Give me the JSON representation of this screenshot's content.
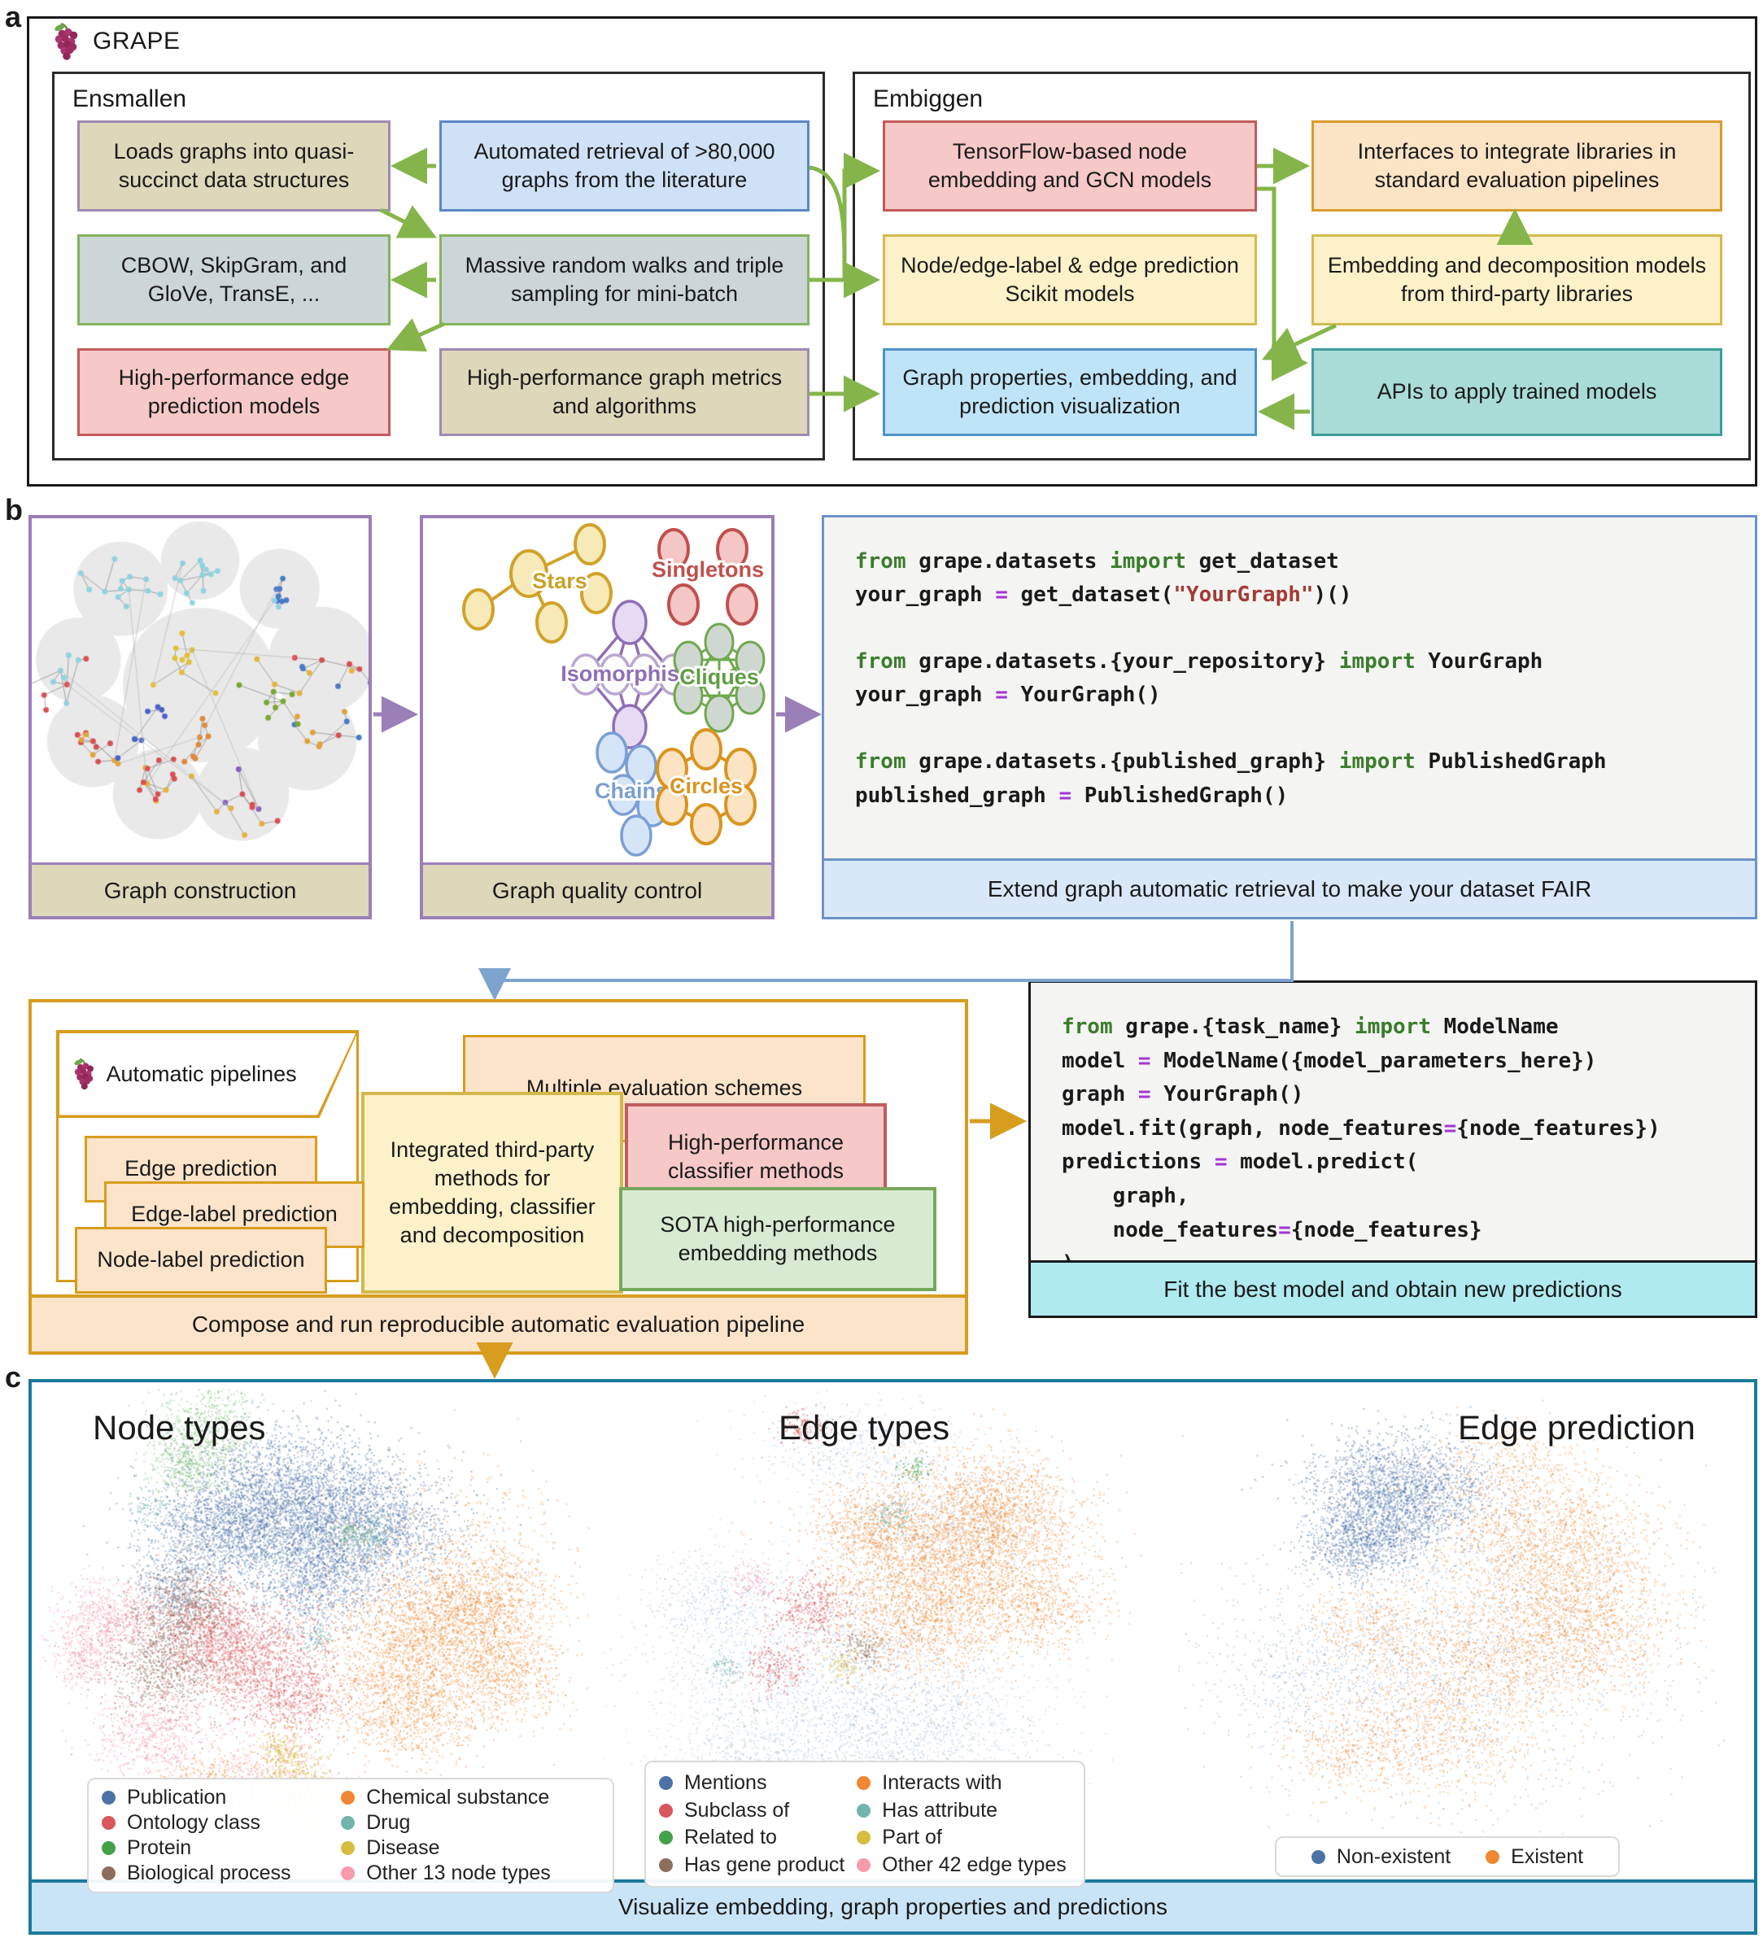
{
  "panel_labels": {
    "a": "a",
    "b": "b",
    "c": "c"
  },
  "brand": {
    "name": "GRAPE",
    "grape_color": "#9c2d62",
    "stem_color": "#5c8a3a"
  },
  "panel_a": {
    "ensmallen": {
      "title": "Ensmallen",
      "boxes": {
        "loads": "Loads graphs into quasi-succinct data structures",
        "retrieval": "Automated retrieval of >80,000 graphs from the literature",
        "cbow": "CBOW, SkipGram, and GloVe, TransE, ...",
        "walks": "Massive random walks and triple sampling for mini-batch",
        "edgepred": "High-performance edge prediction models",
        "metrics": "High-performance graph metrics and algorithms"
      }
    },
    "embiggen": {
      "title": "Embiggen",
      "boxes": {
        "tf": "TensorFlow-based node embedding and GCN models",
        "interfaces": "Interfaces to integrate libraries in standard evaluation pipelines",
        "scikit": "Node/edge-label & edge prediction Scikit models",
        "third": "Embedding and decomposition models from third-party libraries",
        "viz": "Graph properties, embedding, and prediction visualization",
        "apis": "APIs to apply trained models"
      }
    },
    "arrow_color": "#85b54a"
  },
  "panel_b": {
    "construction": {
      "caption": "Graph construction"
    },
    "quality": {
      "caption": "Graph quality control",
      "motifs": [
        "Stars",
        "Singletons",
        "Isomorphism",
        "Cliques",
        "Chains",
        "Circles"
      ]
    },
    "code1": {
      "caption": "Extend graph automatic retrieval to make your dataset FAIR",
      "lines": [
        [
          [
            "k",
            "from"
          ],
          [
            "p",
            " grape.datasets "
          ],
          [
            "k",
            "import"
          ],
          [
            "p",
            " get_dataset"
          ]
        ],
        [
          [
            "p",
            "your_graph "
          ],
          [
            "o",
            "="
          ],
          [
            "p",
            " get_dataset("
          ],
          [
            "s",
            "\"YourGraph\""
          ],
          [
            "p",
            ")()"
          ]
        ],
        [],
        [
          [
            "k",
            "from"
          ],
          [
            "p",
            " grape.datasets.{your_repository} "
          ],
          [
            "k",
            "import"
          ],
          [
            "p",
            " YourGraph"
          ]
        ],
        [
          [
            "p",
            "your_graph "
          ],
          [
            "o",
            "="
          ],
          [
            "p",
            " YourGraph()"
          ]
        ],
        [],
        [
          [
            "k",
            "from"
          ],
          [
            "p",
            " grape.datasets.{published_graph} "
          ],
          [
            "k",
            "import"
          ],
          [
            "p",
            " PublishedGraph"
          ]
        ],
        [
          [
            "p",
            "published_graph "
          ],
          [
            "o",
            "="
          ],
          [
            "p",
            " PublishedGraph()"
          ]
        ]
      ]
    },
    "pipelines": {
      "tab": "Automatic pipelines",
      "items": [
        "Edge prediction",
        "Edge-label prediction",
        "Node-label prediction"
      ],
      "schemes": "Multiple evaluation schemes",
      "third_party": "Integrated third-party methods for embedding, classifier and decomposition",
      "classifier": "High-performance classifier methods",
      "sota": "SOTA high-performance embedding methods",
      "caption": "Compose and run reproducible automatic evaluation pipeline"
    },
    "code2": {
      "caption": "Fit the best model and obtain new predictions",
      "lines": [
        [
          [
            "k",
            "from"
          ],
          [
            "p",
            " grape.{task_name} "
          ],
          [
            "k",
            "import"
          ],
          [
            "p",
            " ModelName"
          ]
        ],
        [
          [
            "p",
            "model "
          ],
          [
            "o",
            "="
          ],
          [
            "p",
            " ModelName({model_parameters_here})"
          ]
        ],
        [
          [
            "p",
            "graph "
          ],
          [
            "o",
            "="
          ],
          [
            "p",
            " YourGraph()"
          ]
        ],
        [
          [
            "p",
            "model.fit(graph, node_features"
          ],
          [
            "o",
            "="
          ],
          [
            "p",
            "{node_features})"
          ]
        ],
        [
          [
            "p",
            "predictions "
          ],
          [
            "o",
            "="
          ],
          [
            "p",
            " model.predict("
          ]
        ],
        [
          [
            "p",
            "    graph,"
          ]
        ],
        [
          [
            "p",
            "    node_features"
          ],
          [
            "o",
            "="
          ],
          [
            "p",
            "{node_features}"
          ]
        ],
        [
          [
            "p",
            ")"
          ]
        ]
      ]
    }
  },
  "panel_c": {
    "caption": "Visualize embedding, graph properties and predictions",
    "border_color": "#1b7a9c"
  },
  "chart_data": [
    {
      "type": "scatter",
      "title": "Node types",
      "legend": [
        {
          "label": "Publication",
          "color": "#4c72a7"
        },
        {
          "label": "Chemical substance",
          "color": "#ef8733"
        },
        {
          "label": "Ontology class",
          "color": "#d9565c"
        },
        {
          "label": "Drug",
          "color": "#72b5ad"
        },
        {
          "label": "Protein",
          "color": "#44a049"
        },
        {
          "label": "Disease",
          "color": "#d6bc3f"
        },
        {
          "label": "Biological process",
          "color": "#8d6e5c"
        },
        {
          "label": "Other 13 node types",
          "color": "#f79bab"
        }
      ],
      "clusters": [
        {
          "color": "#4c72a7",
          "alpha": 0.45,
          "blobs": [
            [
              0.45,
              0.22,
              0.1,
              0.07,
              2600
            ],
            [
              0.58,
              0.3,
              0.09,
              0.06,
              1800
            ],
            [
              0.33,
              0.3,
              0.07,
              0.05,
              1200
            ],
            [
              0.5,
              0.4,
              0.06,
              0.05,
              900
            ],
            [
              0.24,
              0.42,
              0.04,
              0.04,
              400
            ]
          ]
        },
        {
          "color": "#ef8733",
          "alpha": 0.45,
          "blobs": [
            [
              0.7,
              0.52,
              0.09,
              0.08,
              1800
            ],
            [
              0.8,
              0.44,
              0.07,
              0.06,
              1000
            ],
            [
              0.66,
              0.66,
              0.07,
              0.06,
              900
            ],
            [
              0.85,
              0.6,
              0.05,
              0.05,
              500
            ],
            [
              0.3,
              0.83,
              0.045,
              0.035,
              450
            ],
            [
              0.75,
              0.3,
              0.1,
              0.08,
              250
            ]
          ]
        },
        {
          "color": "#d9565c",
          "alpha": 0.45,
          "blobs": [
            [
              0.38,
              0.56,
              0.075,
              0.06,
              1400
            ],
            [
              0.3,
              0.5,
              0.05,
              0.05,
              700
            ],
            [
              0.46,
              0.64,
              0.05,
              0.04,
              500
            ]
          ]
        },
        {
          "color": "#8d6e5c",
          "alpha": 0.5,
          "blobs": [
            [
              0.22,
              0.56,
              0.055,
              0.07,
              900
            ],
            [
              0.27,
              0.44,
              0.04,
              0.04,
              400
            ]
          ]
        },
        {
          "color": "#f79bab",
          "alpha": 0.5,
          "blobs": [
            [
              0.12,
              0.48,
              0.05,
              0.04,
              600
            ],
            [
              0.2,
              0.72,
              0.055,
              0.05,
              600
            ],
            [
              0.42,
              0.8,
              0.05,
              0.04,
              400
            ],
            [
              0.08,
              0.56,
              0.03,
              0.03,
              250
            ]
          ]
        },
        {
          "color": "#7fbf7a",
          "alpha": 0.45,
          "blobs": [
            [
              0.3,
              0.09,
              0.05,
              0.055,
              700
            ],
            [
              0.26,
              0.16,
              0.03,
              0.03,
              300
            ],
            [
              0.56,
              0.3,
              0.015,
              0.015,
              100
            ]
          ]
        },
        {
          "color": "#d6bc3f",
          "alpha": 0.55,
          "blobs": [
            [
              0.47,
              0.85,
              0.035,
              0.045,
              500
            ],
            [
              0.44,
              0.76,
              0.02,
              0.03,
              200
            ]
          ]
        },
        {
          "color": "#72b5ad",
          "alpha": 0.55,
          "blobs": [
            [
              0.6,
              0.3,
              0.02,
              0.02,
              120
            ],
            [
              0.5,
              0.52,
              0.015,
              0.015,
              80
            ],
            [
              0.2,
              0.25,
              0.02,
              0.02,
              80
            ]
          ]
        }
      ]
    },
    {
      "type": "scatter",
      "title": "Edge types",
      "legend": [
        {
          "label": "Mentions",
          "color": "#4c72a7"
        },
        {
          "label": "Interacts with",
          "color": "#ef8733"
        },
        {
          "label": "Subclass of",
          "color": "#d9565c"
        },
        {
          "label": "Has attribute",
          "color": "#72b5ad"
        },
        {
          "label": "Related to",
          "color": "#44a049"
        },
        {
          "label": "Part of",
          "color": "#d6bc3f"
        },
        {
          "label": "Has gene product",
          "color": "#8d6e5c"
        },
        {
          "label": "Other 42 edge types",
          "color": "#f79bab"
        }
      ],
      "clusters": [
        {
          "color": "#6f93be",
          "alpha": 0.25,
          "blobs": [
            [
              0.38,
              0.6,
              0.16,
              0.13,
              2000
            ],
            [
              0.58,
              0.72,
              0.12,
              0.09,
              1200
            ],
            [
              0.3,
              0.8,
              0.08,
              0.06,
              700
            ],
            [
              0.62,
              0.28,
              0.1,
              0.08,
              600
            ],
            [
              0.45,
              0.12,
              0.09,
              0.05,
              500
            ],
            [
              0.2,
              0.45,
              0.06,
              0.05,
              400
            ]
          ]
        },
        {
          "color": "#ef8733",
          "alpha": 0.45,
          "blobs": [
            [
              0.62,
              0.34,
              0.11,
              0.09,
              2600
            ],
            [
              0.72,
              0.25,
              0.07,
              0.06,
              900
            ],
            [
              0.57,
              0.48,
              0.08,
              0.06,
              900
            ],
            [
              0.78,
              0.45,
              0.06,
              0.05,
              500
            ],
            [
              0.48,
              0.28,
              0.05,
              0.04,
              400
            ]
          ]
        },
        {
          "color": "#d9565c",
          "alpha": 0.5,
          "blobs": [
            [
              0.37,
              0.45,
              0.04,
              0.04,
              350
            ],
            [
              0.31,
              0.58,
              0.03,
              0.03,
              200
            ],
            [
              0.36,
              0.08,
              0.025,
              0.02,
              120
            ]
          ]
        },
        {
          "color": "#72b5ad",
          "alpha": 0.55,
          "blobs": [
            [
              0.52,
              0.26,
              0.02,
              0.02,
              120
            ],
            [
              0.22,
              0.58,
              0.015,
              0.015,
              70
            ]
          ]
        },
        {
          "color": "#44a049",
          "alpha": 0.55,
          "blobs": [
            [
              0.56,
              0.17,
              0.015,
              0.015,
              70
            ]
          ]
        },
        {
          "color": "#d6bc3f",
          "alpha": 0.55,
          "blobs": [
            [
              0.43,
              0.58,
              0.015,
              0.015,
              70
            ]
          ]
        },
        {
          "color": "#8d6e5c",
          "alpha": 0.5,
          "blobs": [
            [
              0.47,
              0.54,
              0.025,
              0.02,
              150
            ]
          ]
        },
        {
          "color": "#f79bab",
          "alpha": 0.5,
          "blobs": [
            [
              0.26,
              0.4,
              0.02,
              0.02,
              100
            ]
          ]
        }
      ]
    },
    {
      "type": "scatter",
      "title": "Edge prediction",
      "legend": [
        {
          "label": "Non-existent",
          "color": "#4c72a7"
        },
        {
          "label": "Existent",
          "color": "#ef8733"
        }
      ],
      "clusters": [
        {
          "color": "#4c72a7",
          "alpha": 0.45,
          "blobs": [
            [
              0.4,
              0.22,
              0.08,
              0.06,
              2200
            ],
            [
              0.33,
              0.32,
              0.05,
              0.04,
              800
            ]
          ]
        },
        {
          "color": "#4c72a7",
          "alpha": 0.28,
          "blobs": [
            [
              0.5,
              0.55,
              0.2,
              0.16,
              1400
            ],
            [
              0.25,
              0.6,
              0.1,
              0.08,
              500
            ]
          ]
        },
        {
          "color": "#ef8733",
          "alpha": 0.42,
          "blobs": [
            [
              0.66,
              0.33,
              0.1,
              0.08,
              1800
            ],
            [
              0.74,
              0.5,
              0.08,
              0.07,
              1000
            ],
            [
              0.56,
              0.56,
              0.09,
              0.07,
              900
            ],
            [
              0.46,
              0.72,
              0.1,
              0.07,
              800
            ],
            [
              0.35,
              0.5,
              0.06,
              0.05,
              400
            ],
            [
              0.6,
              0.15,
              0.07,
              0.04,
              300
            ],
            [
              0.3,
              0.75,
              0.06,
              0.05,
              300
            ]
          ]
        }
      ]
    }
  ]
}
